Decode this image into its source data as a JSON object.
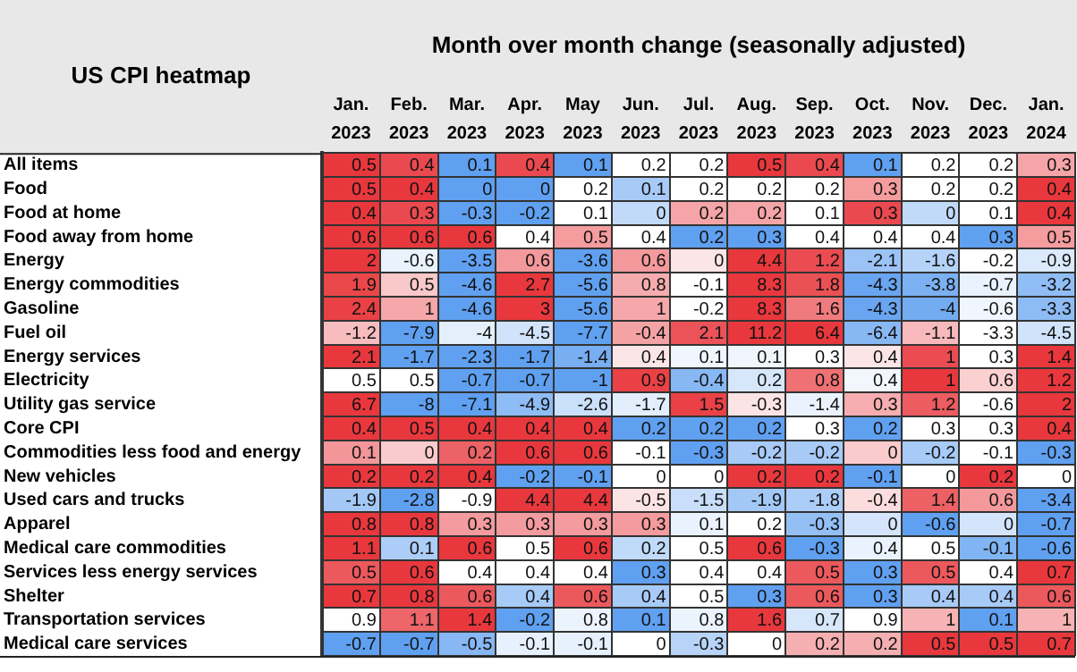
{
  "chart_data": {
    "type": "heatmap",
    "title": "US CPI heatmap",
    "xlabel": "Month over month change (seasonally adjusted)",
    "categories": [
      "Jan. 2023",
      "Feb. 2023",
      "Mar. 2023",
      "Apr. 2023",
      "May 2023",
      "Jun. 2023",
      "Jul. 2023",
      "Aug. 2023",
      "Sep. 2023",
      "Oct. 2023",
      "Nov. 2023",
      "Dec. 2023",
      "Jan. 2024"
    ],
    "y_categories": [
      "All items",
      "Food",
      "Food at home",
      "Food away from home",
      "Energy",
      "Energy commodities",
      "Gasoline",
      "Fuel oil",
      "Energy services",
      "Electricity",
      "Utility gas service",
      "Core CPI",
      "Commodities less food and energy",
      "New vehicles",
      "Used cars and trucks",
      "Apparel",
      "Medical care commodities",
      "Services less energy services",
      "Shelter",
      "Transportation services",
      "Medical care services"
    ],
    "cells": [
      [
        0.5,
        0.4,
        0.1,
        0.4,
        0.1,
        0.2,
        0.2,
        0.5,
        0.4,
        0.1,
        0.2,
        0.2,
        0.3
      ],
      [
        0.5,
        0.4,
        0,
        0,
        0.2,
        0.1,
        0.2,
        0.2,
        0.2,
        0.3,
        0.2,
        0.2,
        0.4
      ],
      [
        0.4,
        0.3,
        -0.3,
        -0.2,
        0.1,
        0,
        0.2,
        0.2,
        0.1,
        0.3,
        0,
        0.1,
        0.4
      ],
      [
        0.6,
        0.6,
        0.6,
        0.4,
        0.5,
        0.4,
        0.2,
        0.3,
        0.4,
        0.4,
        0.4,
        0.3,
        0.5
      ],
      [
        2,
        -0.6,
        -3.5,
        0.6,
        -3.6,
        0.6,
        0,
        4.4,
        1.2,
        -2.1,
        -1.6,
        -0.2,
        -0.9
      ],
      [
        1.9,
        0.5,
        -4.6,
        2.7,
        -5.6,
        0.8,
        -0.1,
        8.3,
        1.8,
        -4.3,
        -3.8,
        -0.7,
        -3.2
      ],
      [
        2.4,
        1,
        -4.6,
        3,
        -5.6,
        1,
        -0.2,
        8.3,
        1.6,
        -4.3,
        -4,
        -0.6,
        -3.3
      ],
      [
        -1.2,
        -7.9,
        -4,
        -4.5,
        -7.7,
        -0.4,
        2.1,
        11.2,
        6.4,
        -6.4,
        -1.1,
        -3.3,
        -4.5
      ],
      [
        2.1,
        -1.7,
        -2.3,
        -1.7,
        -1.4,
        0.4,
        0.1,
        0.1,
        0.3,
        0.4,
        1,
        0.3,
        1.4
      ],
      [
        0.5,
        0.5,
        -0.7,
        -0.7,
        -1,
        0.9,
        -0.4,
        0.2,
        0.8,
        0.4,
        1,
        0.6,
        1.2
      ],
      [
        6.7,
        -8,
        -7.1,
        -4.9,
        -2.6,
        -1.7,
        1.5,
        -0.3,
        -1.4,
        0.3,
        1.2,
        -0.6,
        2
      ],
      [
        0.4,
        0.5,
        0.4,
        0.4,
        0.4,
        0.2,
        0.2,
        0.2,
        0.3,
        0.2,
        0.3,
        0.3,
        0.4
      ],
      [
        0.1,
        0,
        0.2,
        0.6,
        0.6,
        -0.1,
        -0.3,
        -0.2,
        -0.2,
        0,
        -0.2,
        -0.1,
        -0.3
      ],
      [
        0.2,
        0.2,
        0.4,
        -0.2,
        -0.1,
        0,
        0,
        0.2,
        0.2,
        -0.1,
        0,
        0.2,
        0
      ],
      [
        -1.9,
        -2.8,
        -0.9,
        4.4,
        4.4,
        -0.5,
        -1.5,
        -1.9,
        -1.8,
        -0.4,
        1.4,
        0.6,
        -3.4
      ],
      [
        0.8,
        0.8,
        0.3,
        0.3,
        0.3,
        0.3,
        0.1,
        0.2,
        -0.3,
        0,
        -0.6,
        0,
        -0.7
      ],
      [
        1.1,
        0.1,
        0.6,
        0.5,
        0.6,
        0.2,
        0.5,
        0.6,
        -0.3,
        0.4,
        0.5,
        -0.1,
        -0.6
      ],
      [
        0.5,
        0.6,
        0.4,
        0.4,
        0.4,
        0.3,
        0.4,
        0.4,
        0.5,
        0.3,
        0.5,
        0.4,
        0.7
      ],
      [
        0.7,
        0.8,
        0.6,
        0.4,
        0.6,
        0.4,
        0.5,
        0.3,
        0.6,
        0.3,
        0.4,
        0.4,
        0.6
      ],
      [
        0.9,
        1.1,
        1.4,
        -0.2,
        0.8,
        0.1,
        0.8,
        1.6,
        0.7,
        0.9,
        1,
        0.1,
        1
      ],
      [
        -0.7,
        -0.7,
        -0.5,
        -0.1,
        -0.1,
        0,
        -0.3,
        0,
        0.2,
        0.2,
        0.5,
        0.5,
        0.7
      ]
    ],
    "data_labels": true
  }
}
